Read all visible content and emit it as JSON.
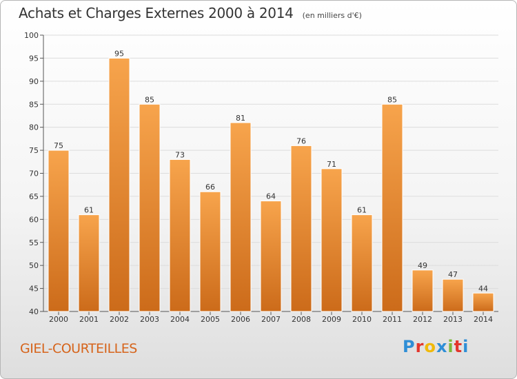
{
  "header": {
    "title": "Achats et Charges Externes 2000 à 2014",
    "unit": "(en milliers d'€)"
  },
  "footer": {
    "commune": "GIEL-COURTEILLES",
    "logo_text": "Proxiti"
  },
  "colors": {
    "bar_top": "#f7a44c",
    "bar_bottom": "#cc6b1a",
    "commune_text": "#d6641b",
    "logo_letters": [
      "#2e8ed6",
      "#e3362c",
      "#f0b90b",
      "#2e8ed6",
      "#7db83a",
      "#e3362c",
      "#2e8ed6"
    ]
  },
  "chart_data": {
    "type": "bar",
    "categories": [
      "2000",
      "2001",
      "2002",
      "2003",
      "2004",
      "2005",
      "2006",
      "2007",
      "2008",
      "2009",
      "2010",
      "2011",
      "2012",
      "2013",
      "2014"
    ],
    "values": [
      75,
      61,
      95,
      85,
      73,
      66,
      81,
      64,
      76,
      71,
      61,
      85,
      49,
      47,
      44
    ],
    "ylim": [
      40,
      100
    ],
    "yticks": [
      40,
      45,
      50,
      55,
      60,
      65,
      70,
      75,
      80,
      85,
      90,
      95,
      100
    ],
    "grid": true,
    "data_labels": true
  }
}
